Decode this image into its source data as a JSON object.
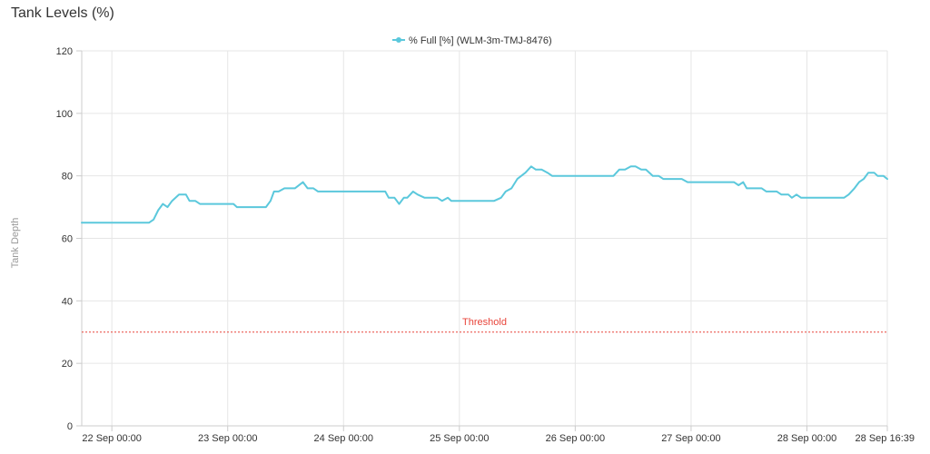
{
  "header": {
    "title": "Tank Levels (%)"
  },
  "chart_data": {
    "type": "line",
    "title": "Tank Levels (%)",
    "xlabel": "",
    "ylabel": "Tank Depth",
    "ylim": [
      0,
      120
    ],
    "yticks": [
      0,
      20,
      40,
      60,
      80,
      100,
      120
    ],
    "xlim": [
      -0.26,
      6.694
    ],
    "xticks": [
      {
        "x": 0,
        "label": "22 Sep 00:00"
      },
      {
        "x": 1,
        "label": "23 Sep 00:00"
      },
      {
        "x": 2,
        "label": "24 Sep 00:00"
      },
      {
        "x": 3,
        "label": "25 Sep 00:00"
      },
      {
        "x": 4,
        "label": "26 Sep 00:00"
      },
      {
        "x": 5,
        "label": "27 Sep 00:00"
      },
      {
        "x": 6,
        "label": "28 Sep 00:00"
      },
      {
        "x": 6.694,
        "label": "28 Sep 16:39"
      }
    ],
    "grid": true,
    "legend_position": "top-center",
    "series": [
      {
        "name": "% Full [%] (WLM-3m-TMJ-8476)",
        "color": "#5bc8dc",
        "points": [
          [
            -0.26,
            65
          ],
          [
            0.32,
            65
          ],
          [
            0.36,
            66
          ],
          [
            0.4,
            69
          ],
          [
            0.44,
            71
          ],
          [
            0.48,
            70
          ],
          [
            0.52,
            72
          ],
          [
            0.58,
            74
          ],
          [
            0.64,
            74
          ],
          [
            0.67,
            72
          ],
          [
            0.72,
            72
          ],
          [
            0.76,
            71
          ],
          [
            1.05,
            71
          ],
          [
            1.08,
            70
          ],
          [
            1.33,
            70
          ],
          [
            1.37,
            72
          ],
          [
            1.4,
            75
          ],
          [
            1.44,
            75
          ],
          [
            1.49,
            76
          ],
          [
            1.58,
            76
          ],
          [
            1.65,
            78
          ],
          [
            1.69,
            76
          ],
          [
            1.74,
            76
          ],
          [
            1.78,
            75
          ],
          [
            2.36,
            75
          ],
          [
            2.39,
            73
          ],
          [
            2.44,
            73
          ],
          [
            2.48,
            71
          ],
          [
            2.52,
            73
          ],
          [
            2.55,
            73
          ],
          [
            2.6,
            75
          ],
          [
            2.64,
            74
          ],
          [
            2.7,
            73
          ],
          [
            2.81,
            73
          ],
          [
            2.85,
            72
          ],
          [
            2.9,
            73
          ],
          [
            2.93,
            72
          ],
          [
            3.3,
            72
          ],
          [
            3.36,
            73
          ],
          [
            3.4,
            75
          ],
          [
            3.45,
            76
          ],
          [
            3.5,
            79
          ],
          [
            3.57,
            81
          ],
          [
            3.62,
            83
          ],
          [
            3.66,
            82
          ],
          [
            3.71,
            82
          ],
          [
            3.76,
            81
          ],
          [
            3.8,
            80
          ],
          [
            4.33,
            80
          ],
          [
            4.38,
            82
          ],
          [
            4.43,
            82
          ],
          [
            4.48,
            83
          ],
          [
            4.52,
            83
          ],
          [
            4.57,
            82
          ],
          [
            4.61,
            82
          ],
          [
            4.67,
            80
          ],
          [
            4.72,
            80
          ],
          [
            4.76,
            79
          ],
          [
            4.92,
            79
          ],
          [
            4.97,
            78
          ],
          [
            5.37,
            78
          ],
          [
            5.41,
            77
          ],
          [
            5.45,
            78
          ],
          [
            5.48,
            76
          ],
          [
            5.61,
            76
          ],
          [
            5.65,
            75
          ],
          [
            5.74,
            75
          ],
          [
            5.78,
            74
          ],
          [
            5.84,
            74
          ],
          [
            5.87,
            73
          ],
          [
            5.91,
            74
          ],
          [
            5.95,
            73
          ],
          [
            6.32,
            73
          ],
          [
            6.36,
            74
          ],
          [
            6.41,
            76
          ],
          [
            6.45,
            78
          ],
          [
            6.49,
            79
          ],
          [
            6.53,
            81
          ],
          [
            6.58,
            81
          ],
          [
            6.61,
            80
          ],
          [
            6.66,
            80
          ],
          [
            6.694,
            79
          ]
        ]
      }
    ],
    "annotations": [
      {
        "type": "horizontal-line",
        "y": 30,
        "label": "Threshold",
        "color": "#e8443a",
        "style": "dotted"
      }
    ]
  }
}
